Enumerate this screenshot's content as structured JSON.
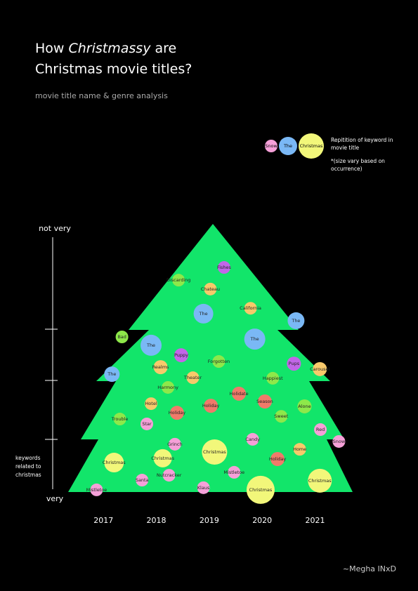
{
  "chart_data": {
    "type": "bubble",
    "title": {
      "before": "How",
      "emphasis": "Christmassy",
      "after": "are",
      "line2": "Christmas movie titles?"
    },
    "subtitle": "movie title name & genre analysis",
    "y_label": "keywords related to christmas",
    "credit": "~Megha INxD",
    "legend": {
      "items": [
        {
          "name": "Snow",
          "color": "#f5a0d8",
          "size": 9
        },
        {
          "name": "The",
          "color": "#7ab8f5",
          "size": 13
        },
        {
          "name": "Christmas",
          "color": "#f2f77a",
          "size": 18
        }
      ],
      "text": "Repitition of keyword in movie title",
      "note": "*(size vary based on occurrence)"
    },
    "xlim": [
      2016.24,
      2021.75
    ],
    "xticks": [
      2017,
      2018,
      2019,
      2020,
      2021
    ],
    "ylim": [
      0,
      10
    ],
    "yticks": [
      {
        "value": 10,
        "label": "not very"
      },
      {
        "value": 0,
        "label": "very"
      }
    ],
    "points": {
      "labels": [
        "Fishes",
        "Discarding",
        "Chateau",
        "California",
        "The",
        "The",
        "Bad",
        "The",
        "The",
        "Puppy",
        "Pups",
        "Forgotten",
        "Realms",
        "Carousel",
        "The",
        "Theater",
        "Happiest",
        "Harmony",
        "Holidate",
        "Season",
        "Hotel",
        "Holiday",
        "Alone",
        "Holiday",
        "Sweet",
        "Trouble",
        "Star",
        "Red",
        "Candy",
        "Snow",
        "Grinch",
        "Home",
        "Christmas",
        "Christmas",
        "Holiday",
        "Christmas",
        "Mistletoe",
        "Nutcracker",
        "Santa",
        "Christmas",
        "Klaus",
        "Christmas",
        "Mistletoe"
      ],
      "x": [
        2019.28,
        2018.42,
        2019.02,
        2019.78,
        2018.89,
        2020.64,
        2017.35,
        2019.86,
        2017.9,
        2018.47,
        2020.6,
        2019.18,
        2018.08,
        2021.09,
        2017.16,
        2018.69,
        2020.2,
        2018.22,
        2019.56,
        2020.05,
        2017.9,
        2019.03,
        2020.8,
        2018.39,
        2020.36,
        2017.31,
        2017.82,
        2021.1,
        2019.82,
        2021.45,
        2018.35,
        2020.71,
        2019.1,
        2018.12,
        2020.29,
        2017.2,
        2019.47,
        2018.24,
        2017.73,
        2021.09,
        2018.89,
        2019.97,
        2016.87
      ],
      "values": [
        8.57,
        8.1,
        7.77,
        7.06,
        6.86,
        6.6,
        6.0,
        5.92,
        5.69,
        5.32,
        5.01,
        5.09,
        4.88,
        4.81,
        4.62,
        4.49,
        4.47,
        4.13,
        3.9,
        3.61,
        3.53,
        3.45,
        3.43,
        3.19,
        3.06,
        2.96,
        2.78,
        2.57,
        2.21,
        2.13,
        2.03,
        1.84,
        1.74,
        1.51,
        1.48,
        1.35,
        0.99,
        0.88,
        0.7,
        0.68,
        0.42,
        0.34,
        0.34
      ],
      "sizes": [
        9,
        9,
        9,
        9,
        14,
        12,
        9,
        15,
        15,
        10,
        10,
        9,
        10,
        10,
        11,
        9,
        9,
        9,
        10,
        10,
        9,
        10,
        10,
        10,
        9,
        9,
        9,
        9,
        9,
        9,
        9,
        9,
        18,
        13,
        10,
        14,
        9,
        9,
        9,
        17,
        9,
        20,
        9
      ],
      "colors": [
        "#c266e8",
        "#8ee84a",
        "#f7c96b",
        "#f7c96b",
        "#7ab8f5",
        "#7ab8f5",
        "#8ee84a",
        "#7ab8f5",
        "#7ab8f5",
        "#c266e8",
        "#c266e8",
        "#8ee84a",
        "#f7c96b",
        "#f7c96b",
        "#7ab8f5",
        "#f7c96b",
        "#8ee84a",
        "#8ee84a",
        "#f07a6a",
        "#f07a6a",
        "#f7c96b",
        "#f07a6a",
        "#8ee84a",
        "#f07a6a",
        "#8ee84a",
        "#8ee84a",
        "#f5a0d8",
        "#f5a0d8",
        "#f5a0d8",
        "#f5a0d8",
        "#f5a0d8",
        "#f7c96b",
        "#f2f77a",
        "#f2f77a",
        "#f07a6a",
        "#f2f77a",
        "#f5a0d8",
        "#f5a0d8",
        "#f5a0d8",
        "#f2f77a",
        "#f5a0d8",
        "#f2f77a",
        "#f5a0d8"
      ]
    }
  }
}
